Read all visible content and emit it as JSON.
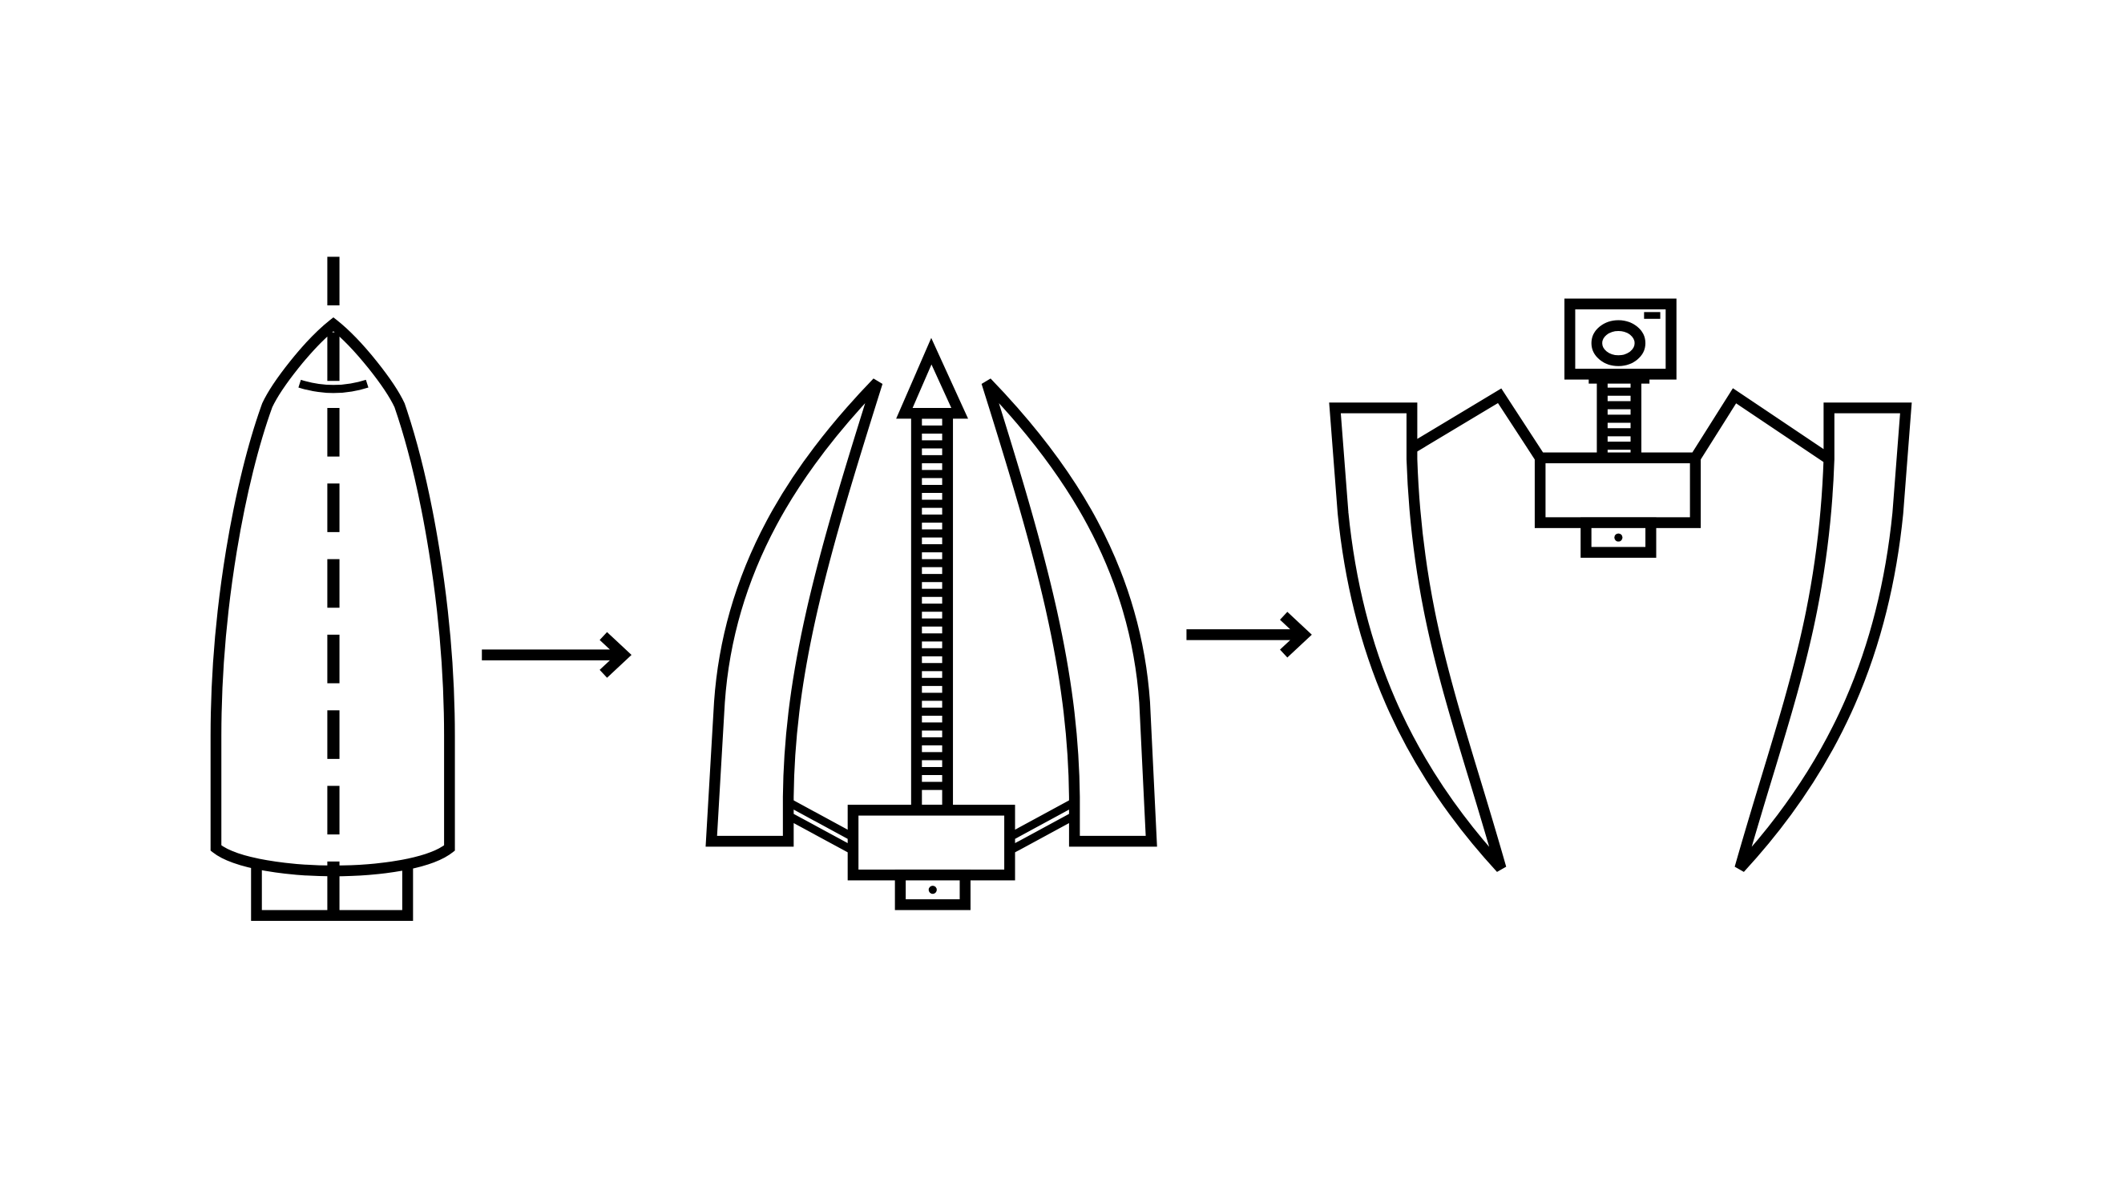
{
  "diagram": {
    "stages": [
      {
        "id": "stage-1",
        "name": "closed-pod"
      },
      {
        "id": "stage-2",
        "name": "opening-pod-with-extending-mast"
      },
      {
        "id": "stage-3",
        "name": "deployed-pod-with-camera"
      }
    ],
    "arrows": [
      {
        "from": "stage-1",
        "to": "stage-2"
      },
      {
        "from": "stage-2",
        "to": "stage-3"
      }
    ],
    "icons": [
      "camera-icon",
      "arrow-right-icon"
    ],
    "colors": {
      "line": "#000000",
      "background": "#ffffff"
    }
  }
}
